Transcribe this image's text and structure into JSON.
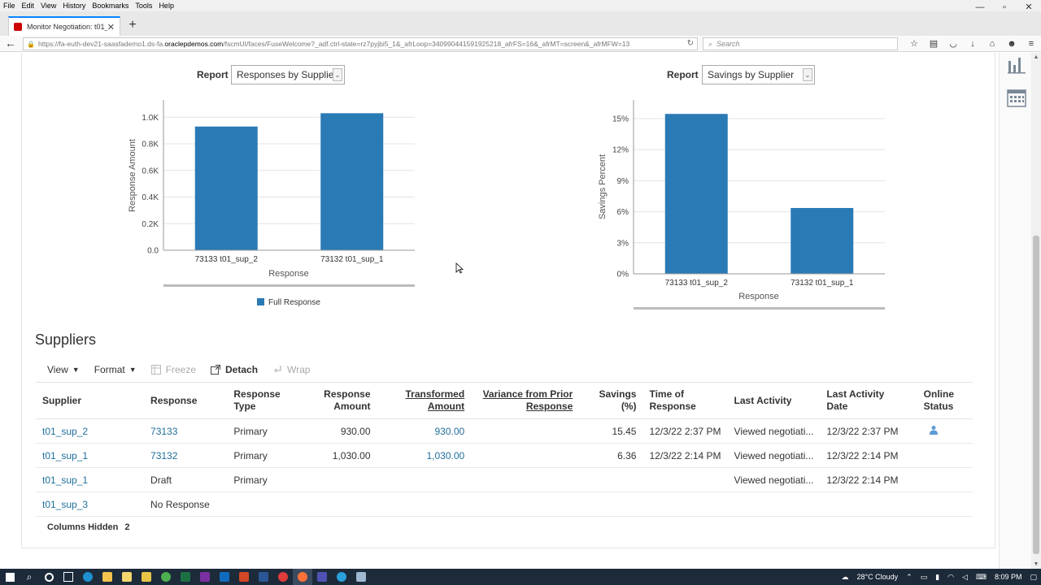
{
  "browser": {
    "menu": [
      "File",
      "Edit",
      "View",
      "History",
      "Bookmarks",
      "Tools",
      "Help"
    ],
    "window_controls": [
      "—",
      "▫",
      "✕"
    ],
    "tab_title": "Monitor Negotiation: t01_...",
    "url_prefix": "https://fa-euth-dev21-saasfademo1.ds-fa.",
    "url_host": "oraclepdemos.com",
    "url_rest": "/fscmUI/faces/FuseWelcome?_adf.ctrl-state=rz7pyjbi5_1&_afrLoop=340990441591925218_afrFS=16&_afrMT=screen&_afrMFW=13",
    "search_placeholder": "Search"
  },
  "charts_panel": {
    "left_report_label": "Report",
    "left_report_value": "Responses by Supplier",
    "right_report_label": "Report",
    "right_report_value": "Savings by Supplier",
    "legend_full_response": "Full Response"
  },
  "chart_data": [
    {
      "type": "bar",
      "categories": [
        "73133 t01_sup_2",
        "73132 t01_sup_1"
      ],
      "values": [
        930,
        1030
      ],
      "yticks": [
        "0.0",
        "0.2K",
        "0.4K",
        "0.6K",
        "0.8K",
        "1.0K"
      ],
      "ytick_values": [
        0,
        200,
        400,
        600,
        800,
        1000
      ],
      "ylim": [
        0,
        1130
      ],
      "xlabel": "Response",
      "ylabel": "Response Amount",
      "legend": [
        "Full Response"
      ],
      "legend_position": "bottom",
      "color": "#2a7ab5"
    },
    {
      "type": "bar",
      "categories": [
        "73133 t01_sup_2",
        "73132 t01_sup_1"
      ],
      "values": [
        15.45,
        6.36
      ],
      "yticks": [
        "0%",
        "3%",
        "6%",
        "9%",
        "12%",
        "15%"
      ],
      "ytick_values": [
        0,
        3,
        6,
        9,
        12,
        15
      ],
      "ylim": [
        0,
        16.8
      ],
      "xlabel": "Response",
      "ylabel": "Savings Percent",
      "color": "#2a7ab5"
    }
  ],
  "suppliers": {
    "title": "Suppliers",
    "toolbar": {
      "view": "View",
      "format": "Format",
      "freeze": "Freeze",
      "detach": "Detach",
      "wrap": "Wrap"
    },
    "headers": {
      "supplier": "Supplier",
      "response": "Response",
      "response_type_1": "Response",
      "response_type_2": "Type",
      "response_amount_1": "Response",
      "response_amount_2": "Amount",
      "transformed_amount_1": "Transformed",
      "transformed_amount_2": "Amount",
      "variance_1": "Variance from Prior",
      "variance_2": "Response",
      "savings": "Savings (%)",
      "time_1": "Time of",
      "time_2": "Response",
      "last_activity": "Last Activity",
      "last_activity_date_1": "Last Activity",
      "last_activity_date_2": "Date",
      "online_1": "Online",
      "online_2": "Status"
    },
    "rows": [
      {
        "supplier": "t01_sup_2",
        "response": "73133",
        "type": "Primary",
        "amount": "930.00",
        "transformed": "930.00",
        "variance": "",
        "savings": "15.45",
        "time": "12/3/22 2:37 PM",
        "activity": "Viewed negotiati...",
        "activity_date": "12/3/22 2:37 PM"
      },
      {
        "supplier": "t01_sup_1",
        "response": "73132",
        "type": "Primary",
        "amount": "1,030.00",
        "transformed": "1,030.00",
        "variance": "",
        "savings": "6.36",
        "time": "12/3/22 2:14 PM",
        "activity": "Viewed negotiati...",
        "activity_date": "12/3/22 2:14 PM"
      },
      {
        "supplier": "t01_sup_1",
        "response": "Draft",
        "type": "Primary",
        "amount": "",
        "transformed": "",
        "variance": "",
        "savings": "",
        "time": "",
        "activity": "Viewed negotiati...",
        "activity_date": "12/3/22 2:14 PM"
      },
      {
        "supplier": "t01_sup_3",
        "response": "No Response",
        "type": "",
        "amount": "",
        "transformed": "",
        "variance": "",
        "savings": "",
        "time": "",
        "activity": "",
        "activity_date": ""
      }
    ],
    "columns_hidden_label": "Columns Hidden",
    "columns_hidden_count": "2"
  },
  "taskbar": {
    "weather": "28°C Cloudy",
    "time": "8:09 PM"
  },
  "colors": {
    "bar": "#2a7ab5",
    "link": "#1f6e9a",
    "taskbar": "#1c2a3a"
  }
}
